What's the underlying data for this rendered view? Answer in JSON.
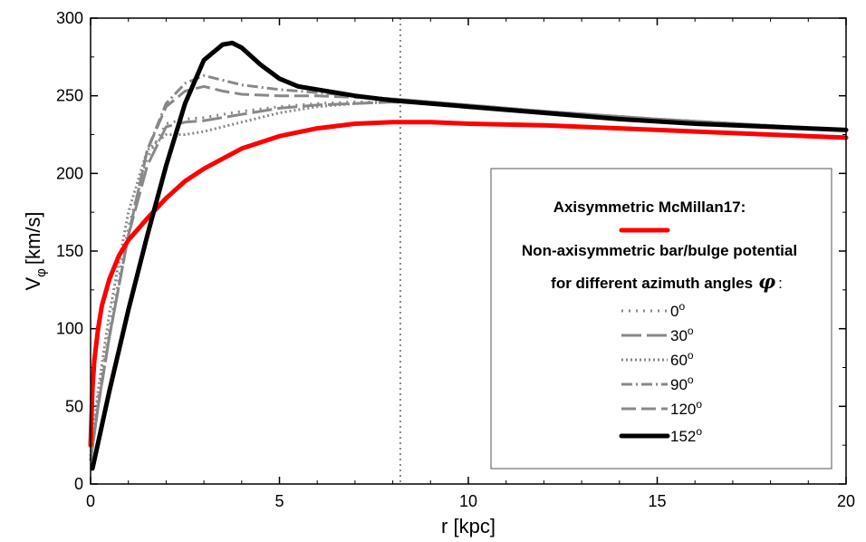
{
  "chart_data": {
    "type": "line",
    "xlabel": "r [kpc]",
    "ylabel": "V",
    "ylabel_sub": "φ",
    "ylabel_unit": "[km/s]",
    "xlim": [
      0,
      20
    ],
    "ylim": [
      0,
      300
    ],
    "x_ticks": [
      0,
      5,
      10,
      15,
      20
    ],
    "y_ticks": [
      0,
      50,
      100,
      150,
      200,
      250,
      300
    ],
    "x_tick_labels": [
      "0",
      "5",
      "10",
      "15",
      "20"
    ],
    "y_tick_labels": [
      "0",
      "50",
      "100",
      "150",
      "200",
      "250",
      "300"
    ],
    "reference_line_x": 8.2,
    "grid": false,
    "legend_position": "right",
    "legend": {
      "header1": "Axisymmetric McMillan17:",
      "header2": "Non-axisymmetric bar/bulge potential",
      "header3_prefix": "for different azimuth angles",
      "header3_symbol": "φ",
      "header3_suffix": ":",
      "degree_symbol": "o"
    },
    "series": [
      {
        "legend_label": "",
        "color": "#ff0000",
        "dash": "solid",
        "legend_row": 0,
        "x": [
          0,
          0.05,
          0.1,
          0.2,
          0.3,
          0.5,
          0.75,
          1,
          1.5,
          2,
          2.5,
          3,
          4,
          5,
          6,
          7,
          8,
          9,
          10,
          12,
          14,
          16,
          18,
          20
        ],
        "y": [
          25,
          62,
          80,
          100,
          115,
          132,
          147,
          157,
          171,
          184,
          195,
          203,
          216,
          224,
          229,
          232,
          233,
          233,
          232,
          231,
          229,
          227,
          225,
          223
        ]
      },
      {
        "legend_label": "0",
        "color": "#888888",
        "dash": "2,6",
        "legend_row": 1,
        "x": [
          0,
          0.2,
          0.5,
          1,
          1.5,
          2,
          2.5,
          3,
          4,
          5,
          6,
          7,
          8,
          10,
          12,
          15,
          20
        ],
        "y": [
          15,
          55,
          100,
          165,
          210,
          232,
          235,
          236,
          240,
          243,
          245,
          246,
          246,
          244,
          240,
          235,
          228
        ]
      },
      {
        "legend_label": "30",
        "color": "#888888",
        "dash": "22,6",
        "legend_row": 2,
        "x": [
          0,
          0.2,
          0.5,
          1,
          1.5,
          2,
          2.5,
          3,
          4,
          5,
          6,
          7,
          8,
          10,
          12,
          15,
          20
        ],
        "y": [
          15,
          50,
          95,
          160,
          205,
          230,
          233,
          234,
          238,
          242,
          244,
          245,
          246,
          244,
          240,
          235,
          228
        ]
      },
      {
        "legend_label": "60",
        "color": "#888888",
        "dash": "2,3",
        "legend_row": 3,
        "x": [
          0,
          0.2,
          0.5,
          1,
          1.5,
          2,
          2.5,
          3,
          4,
          5,
          6,
          7,
          8,
          10,
          12,
          15,
          20
        ],
        "y": [
          18,
          60,
          110,
          175,
          215,
          225,
          225,
          227,
          233,
          239,
          243,
          245,
          246,
          244,
          240,
          235,
          228
        ]
      },
      {
        "legend_label": "90",
        "color": "#888888",
        "dash": "12,4,2,4",
        "legend_row": 4,
        "x": [
          0,
          0.2,
          0.5,
          1,
          1.5,
          2,
          2.5,
          3,
          3.5,
          4,
          5,
          6,
          7,
          8,
          10,
          12,
          15,
          20
        ],
        "y": [
          15,
          50,
          95,
          160,
          215,
          245,
          258,
          263,
          260,
          257,
          254,
          252,
          250,
          248,
          244,
          240,
          235,
          228
        ]
      },
      {
        "legend_label": "120",
        "color": "#888888",
        "dash": "16,6",
        "legend_row": 5,
        "x": [
          0,
          0.2,
          0.5,
          1,
          1.5,
          2,
          2.5,
          3,
          3.5,
          4,
          5,
          6,
          7,
          8,
          10,
          12,
          15,
          20
        ],
        "y": [
          15,
          50,
          95,
          160,
          215,
          243,
          253,
          256,
          253,
          251,
          250,
          250,
          249,
          248,
          244,
          240,
          235,
          228
        ]
      },
      {
        "legend_label": "152",
        "color": "#000000",
        "dash": "solid",
        "legend_row": 6,
        "x": [
          0.05,
          0.5,
          1,
          1.5,
          2,
          2.5,
          3,
          3.5,
          3.75,
          4,
          4.5,
          5,
          5.5,
          6,
          7,
          8,
          9,
          10,
          12,
          14,
          16,
          18,
          20
        ],
        "y": [
          10,
          60,
          112,
          160,
          205,
          245,
          273,
          283,
          284,
          281,
          270,
          261,
          256,
          254,
          250,
          247,
          245,
          243,
          239,
          235,
          232,
          230,
          228
        ]
      }
    ]
  }
}
